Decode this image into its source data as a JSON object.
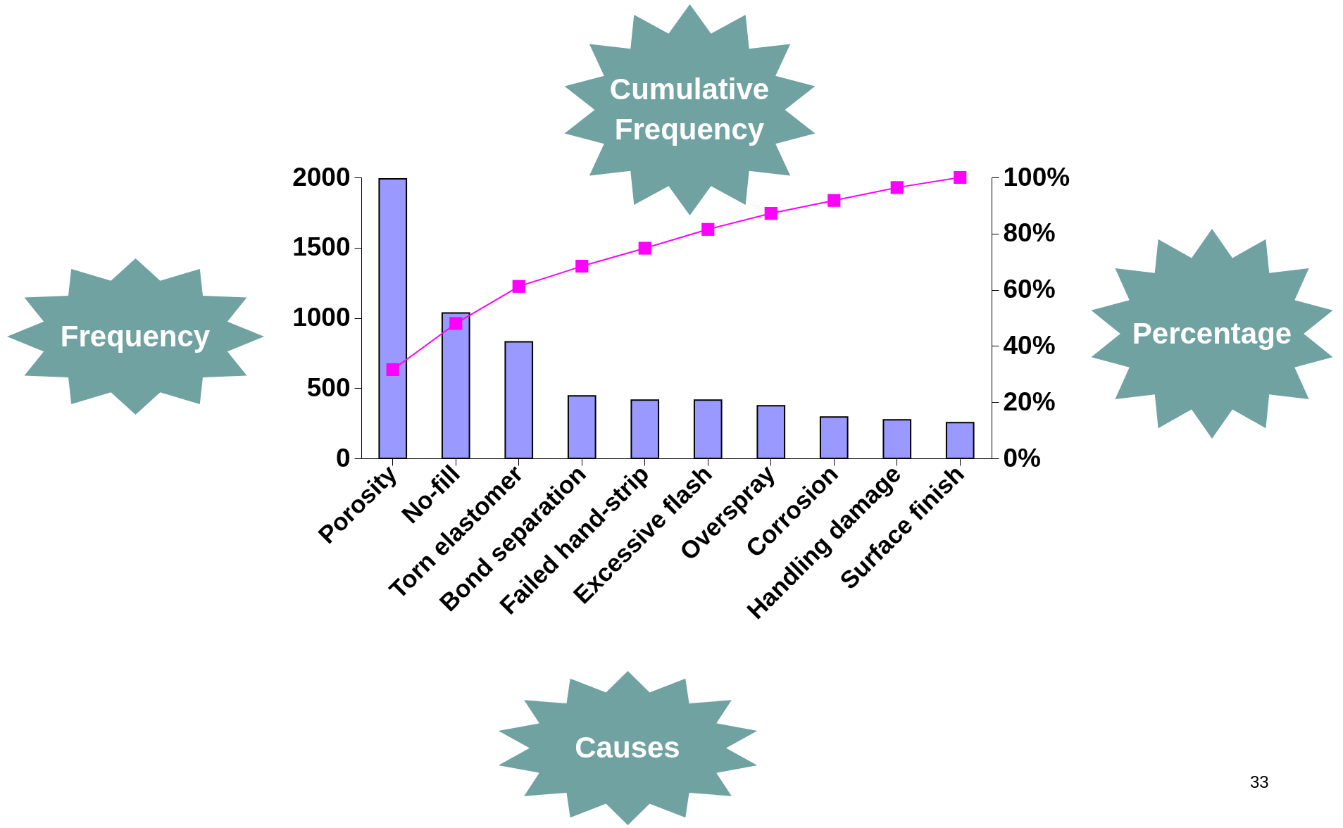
{
  "chart_data": {
    "type": "bar",
    "categories": [
      "Porosity",
      "No-fill",
      "Torn elastomer",
      "Bond separation",
      "Failed hand-strip",
      "Excessive flash",
      "Overspray",
      "Corrosion",
      "Handling damage",
      "Surface finish"
    ],
    "series": [
      {
        "color": "#9999ff",
        "values": [
          1990,
          1035,
          830,
          445,
          415,
          415,
          375,
          295,
          275,
          255
        ]
      },
      {
        "type": "line",
        "axis": "y2",
        "color": "#ff00ff",
        "values": [
          31.6,
          48,
          61.2,
          68.4,
          74.8,
          81.5,
          87.2,
          91.8,
          96.4,
          100
        ]
      }
    ],
    "ylim": [
      0,
      2000
    ],
    "yticks": [
      0,
      500,
      1000,
      1500,
      2000
    ],
    "y2lim": [
      0,
      100
    ],
    "y2ticks": [
      {
        "value": 0,
        "label": "0%"
      },
      {
        "value": 20,
        "label": "20%"
      },
      {
        "value": 40,
        "label": "40%"
      },
      {
        "value": 60,
        "label": "60%"
      },
      {
        "value": 80,
        "label": "80%"
      },
      {
        "value": 100,
        "label": "100%"
      }
    ],
    "ylabel": "Frequency",
    "y2label": "Percentage",
    "xlabel": "Causes",
    "annotations": [
      "Cumulative Frequency",
      "33"
    ],
    "marker": "square",
    "grid": false
  }
}
